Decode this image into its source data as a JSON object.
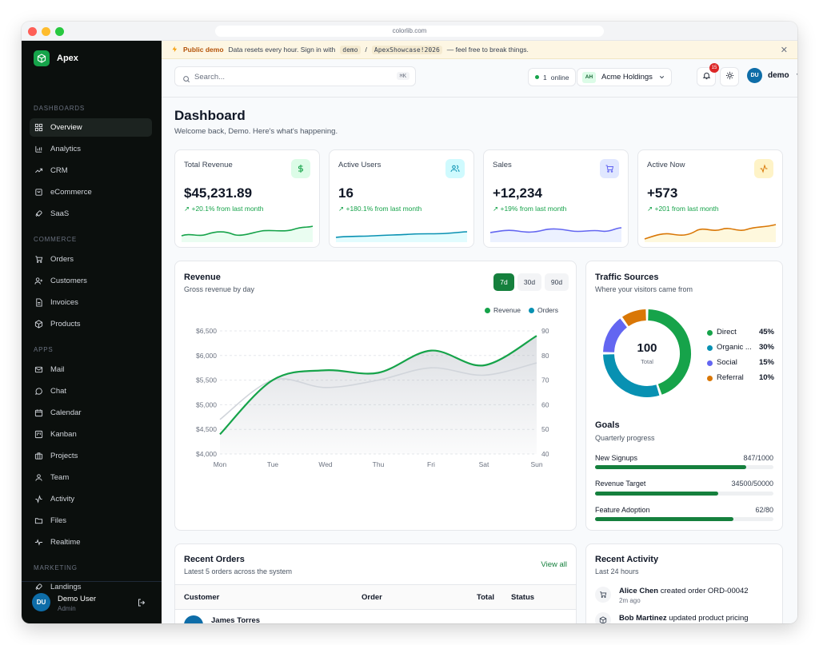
{
  "browser": {
    "url": "colorlib.com"
  },
  "brand": {
    "name": "Apex"
  },
  "sidebar": {
    "sections": [
      {
        "label": "DASHBOARDS",
        "items": [
          {
            "label": "Overview",
            "icon": "grid-icon",
            "active": true
          },
          {
            "label": "Analytics",
            "icon": "bar-chart-icon"
          },
          {
            "label": "CRM",
            "icon": "trending-icon"
          },
          {
            "label": "eCommerce",
            "icon": "shopping-bag-icon"
          },
          {
            "label": "SaaS",
            "icon": "rocket-icon"
          }
        ]
      },
      {
        "label": "COMMERCE",
        "items": [
          {
            "label": "Orders",
            "icon": "cart-icon"
          },
          {
            "label": "Customers",
            "icon": "user-plus-icon"
          },
          {
            "label": "Invoices",
            "icon": "file-icon"
          },
          {
            "label": "Products",
            "icon": "box-icon"
          }
        ]
      },
      {
        "label": "APPS",
        "items": [
          {
            "label": "Mail",
            "icon": "mail-icon"
          },
          {
            "label": "Chat",
            "icon": "chat-icon"
          },
          {
            "label": "Calendar",
            "icon": "calendar-icon"
          },
          {
            "label": "Kanban",
            "icon": "kanban-icon"
          },
          {
            "label": "Projects",
            "icon": "briefcase-icon"
          },
          {
            "label": "Team",
            "icon": "user-icon"
          },
          {
            "label": "Activity",
            "icon": "activity-icon"
          },
          {
            "label": "Files",
            "icon": "folder-icon"
          },
          {
            "label": "Realtime",
            "icon": "pulse-icon"
          }
        ]
      },
      {
        "label": "MARKETING",
        "items": [
          {
            "label": "Landings",
            "icon": "rocket-icon"
          }
        ]
      }
    ],
    "user": {
      "initials": "DU",
      "name": "Demo User",
      "role": "Admin"
    }
  },
  "banner": {
    "tag": "Public demo",
    "text1": "Data resets every hour. Sign in with",
    "user": "demo",
    "sep": "/",
    "password": "ApexShowcase!2026",
    "text2": "— feel free to break things."
  },
  "topbar": {
    "search_placeholder": "Search...",
    "search_shortcut": "⌘K",
    "online_count": "1",
    "online_label": "online",
    "org_initials": "AH",
    "org_name": "Acme Holdings",
    "notifications": "15",
    "user_initials": "DU",
    "user_name": "demo"
  },
  "page": {
    "title": "Dashboard",
    "subtitle": "Welcome back, Demo. Here's what's happening."
  },
  "stats": [
    {
      "label": "Total Revenue",
      "value": "$45,231.89",
      "change": "+20.1% from last month",
      "icon": "dollar-icon",
      "color": "#16a34a",
      "bg": "#dcfce7"
    },
    {
      "label": "Active Users",
      "value": "16",
      "change": "+180.1% from last month",
      "icon": "users-icon",
      "color": "#0891b2",
      "bg": "#cffafe"
    },
    {
      "label": "Sales",
      "value": "+12,234",
      "change": "+19% from last month",
      "icon": "cart-icon",
      "color": "#6366f1",
      "bg": "#e0e7ff"
    },
    {
      "label": "Active Now",
      "value": "+573",
      "change": "+201 from last month",
      "icon": "activity-icon",
      "color": "#d97706",
      "bg": "#fef3c7"
    }
  ],
  "revenue": {
    "title": "Revenue",
    "subtitle": "Gross revenue by day",
    "ranges": [
      "7d",
      "30d",
      "90d"
    ],
    "active_range": "7d"
  },
  "chart_data": {
    "type": "line",
    "categories": [
      "Mon",
      "Tue",
      "Wed",
      "Thu",
      "Fri",
      "Sat",
      "Sun"
    ],
    "series": [
      {
        "name": "Revenue",
        "axis": "left",
        "color": "#16a34a",
        "values": [
          4400,
          5500,
          5700,
          5650,
          6100,
          5800,
          6400
        ]
      },
      {
        "name": "Orders",
        "axis": "right",
        "color": "#0891b2",
        "values": [
          54,
          70,
          67,
          70,
          75,
          72,
          77
        ]
      }
    ],
    "y_left": {
      "ticks": [
        "$4,000",
        "$4,500",
        "$5,000",
        "$5,500",
        "$6,000",
        "$6,500"
      ],
      "range": [
        4000,
        6500
      ]
    },
    "y_right": {
      "ticks": [
        "40",
        "50",
        "60",
        "70",
        "80",
        "90"
      ],
      "range": [
        40,
        90
      ]
    },
    "legend": "top-right",
    "grid": true
  },
  "traffic": {
    "title": "Traffic Sources",
    "subtitle": "Where your visitors came from",
    "total": "100",
    "total_label": "Total",
    "sources": [
      {
        "name": "Direct",
        "pct": "45%",
        "value": 45,
        "color": "#16a34a"
      },
      {
        "name": "Organic ...",
        "pct": "30%",
        "value": 30,
        "color": "#0891b2"
      },
      {
        "name": "Social",
        "pct": "15%",
        "value": 15,
        "color": "#6366f1"
      },
      {
        "name": "Referral",
        "pct": "10%",
        "value": 10,
        "color": "#d97706"
      }
    ]
  },
  "goals": {
    "title": "Goals",
    "subtitle": "Quarterly progress",
    "items": [
      {
        "label": "New Signups",
        "value": "847/1000",
        "fraction": 0.847
      },
      {
        "label": "Revenue Target",
        "value": "34500/50000",
        "fraction": 0.69
      },
      {
        "label": "Feature Adoption",
        "value": "62/80",
        "fraction": 0.775
      }
    ]
  },
  "orders": {
    "title": "Recent Orders",
    "subtitle": "Latest 5 orders across the system",
    "view_all": "View all",
    "columns": [
      "Customer",
      "Order",
      "Total",
      "Status"
    ],
    "first_customer": "James Torres"
  },
  "activity": {
    "title": "Recent Activity",
    "subtitle": "Last 24 hours",
    "items": [
      {
        "who": "Alice Chen",
        "what": "created order ORD-00042",
        "time": "2m ago"
      },
      {
        "who": "Bob Martinez",
        "what": "updated product pricing",
        "time": ""
      }
    ]
  }
}
